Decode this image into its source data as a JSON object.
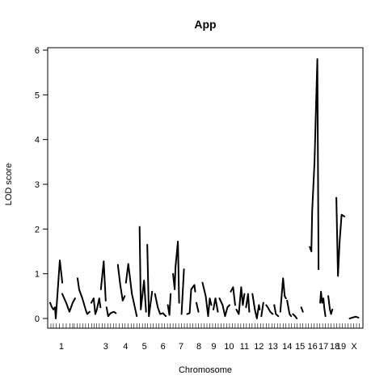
{
  "chart_data": {
    "type": "line",
    "title": "App",
    "xlabel": "Chromosome",
    "ylabel": "LOD score",
    "ylim": [
      0,
      6
    ],
    "yticks": [
      0,
      1,
      2,
      3,
      4,
      5,
      6
    ],
    "chromosomes": [
      {
        "label": "1",
        "start": 0,
        "end": 3,
        "points": [
          [
            0,
            0.35
          ],
          [
            0.4,
            0.26
          ],
          [
            0.8,
            0.2
          ],
          [
            1.2,
            0.25
          ],
          [
            1.4,
            0.0
          ],
          [
            2.4,
            1.3
          ],
          [
            2.9,
            0.9
          ],
          [
            3,
            0.8
          ]
        ]
      },
      {
        "label": "",
        "start": 3,
        "end": 6.5,
        "points": [
          [
            3,
            0.55
          ],
          [
            4.0,
            0.35
          ],
          [
            4.8,
            0.15
          ],
          [
            5.6,
            0.35
          ],
          [
            6.2,
            0.45
          ]
        ]
      },
      {
        "label": "",
        "start": 6.5,
        "end": 10,
        "points": [
          [
            6.8,
            0.9
          ],
          [
            7.2,
            0.65
          ],
          [
            8.0,
            0.45
          ],
          [
            8.8,
            0.2
          ],
          [
            9.2,
            0.1
          ],
          [
            9.8,
            0.15
          ]
        ]
      },
      {
        "label": "",
        "start": 10,
        "end": 12.5,
        "points": [
          [
            10.2,
            0.35
          ],
          [
            10.8,
            0.45
          ],
          [
            11.2,
            0.1
          ],
          [
            11.6,
            0.2
          ],
          [
            12.2,
            0.45
          ],
          [
            12.5,
            0.25
          ]
        ]
      },
      {
        "label": "",
        "start": 12.5,
        "end": 14,
        "points": [
          [
            12.6,
            0.65
          ],
          [
            13.3,
            1.28
          ],
          [
            13.8,
            0.4
          ]
        ]
      },
      {
        "label": "3",
        "start": 14,
        "end": 16.5,
        "points": [
          [
            14,
            0.25
          ],
          [
            14.4,
            0.05
          ],
          [
            15.0,
            0.12
          ],
          [
            15.8,
            0.15
          ],
          [
            16.3,
            0.12
          ]
        ]
      },
      {
        "label": "",
        "start": 16.5,
        "end": 18.5,
        "points": [
          [
            16.8,
            1.2
          ],
          [
            17.4,
            0.75
          ],
          [
            18.0,
            0.4
          ],
          [
            18.5,
            0.5
          ]
        ]
      },
      {
        "label": "4",
        "start": 18.5,
        "end": 22,
        "points": [
          [
            18.8,
            0.8
          ],
          [
            19.4,
            1.22
          ],
          [
            20.3,
            0.55
          ],
          [
            20.9,
            0.3
          ],
          [
            21.5,
            0.05
          ]
        ]
      },
      {
        "label": "",
        "start": 22,
        "end": 24,
        "points": [
          [
            22.2,
            2.05
          ],
          [
            22.5,
            0.2
          ],
          [
            23.3,
            0.85
          ],
          [
            23.8,
            0.15
          ]
        ]
      },
      {
        "label": "5",
        "start": 24,
        "end": 26,
        "points": [
          [
            24.1,
            1.65
          ],
          [
            24.5,
            0.05
          ],
          [
            25.3,
            0.6
          ]
        ]
      },
      {
        "label": "",
        "start": 26,
        "end": 29,
        "points": [
          [
            26.0,
            0.55
          ],
          [
            26.7,
            0.25
          ],
          [
            27.3,
            0.1
          ],
          [
            28.0,
            0.12
          ],
          [
            28.7,
            0.05
          ]
        ]
      },
      {
        "label": "6",
        "start": 29,
        "end": 30,
        "points": [
          [
            29.2,
            0.3
          ],
          [
            29.6,
            0.08
          ],
          [
            29.9,
            0.55
          ]
        ]
      },
      {
        "label": "",
        "start": 30,
        "end": 32,
        "points": [
          [
            30.5,
            1.0
          ],
          [
            30.9,
            0.65
          ],
          [
            31.1,
            1.15
          ],
          [
            31.7,
            1.72
          ],
          [
            32.0,
            0.35
          ]
        ]
      },
      {
        "label": "7",
        "start": 32,
        "end": 33.5,
        "points": [
          [
            32.6,
            0.1
          ],
          [
            33.2,
            1.1
          ]
        ]
      },
      {
        "label": "",
        "start": 33.5,
        "end": 36,
        "points": [
          [
            34.0,
            0.1
          ],
          [
            34.6,
            0.12
          ],
          [
            35.0,
            0.65
          ],
          [
            35.8,
            0.75
          ],
          [
            36.0,
            0.6
          ]
        ]
      },
      {
        "label": "8",
        "start": 36,
        "end": 37.5,
        "points": [
          [
            36.3,
            0.35
          ],
          [
            36.8,
            0.15
          ]
        ]
      },
      {
        "label": "",
        "start": 37.5,
        "end": 40,
        "points": [
          [
            37.8,
            0.8
          ],
          [
            38.6,
            0.5
          ],
          [
            39.2,
            0.05
          ],
          [
            39.6,
            0.45
          ],
          [
            40.0,
            0.3
          ]
        ]
      },
      {
        "label": "9",
        "start": 40,
        "end": 42,
        "points": [
          [
            40.5,
            0.2
          ],
          [
            41.0,
            0.45
          ],
          [
            41.6,
            0.15
          ]
        ]
      },
      {
        "label": "",
        "start": 42,
        "end": 44.5,
        "points": [
          [
            42.0,
            0.45
          ],
          [
            42.8,
            0.3
          ],
          [
            43.4,
            0.05
          ],
          [
            44.0,
            0.25
          ],
          [
            44.5,
            0.3
          ]
        ]
      },
      {
        "label": "10",
        "start": 44.5,
        "end": 46,
        "points": [
          [
            44.8,
            0.6
          ],
          [
            45.4,
            0.7
          ],
          [
            45.9,
            0.3
          ]
        ]
      },
      {
        "label": "",
        "start": 46,
        "end": 48.5,
        "points": [
          [
            46.2,
            0.2
          ],
          [
            46.8,
            0.1
          ],
          [
            47.4,
            0.7
          ],
          [
            47.8,
            0.3
          ],
          [
            48.2,
            0.55
          ]
        ]
      },
      {
        "label": "11",
        "start": 48.5,
        "end": 50,
        "points": [
          [
            48.6,
            0.25
          ],
          [
            49.1,
            0.55
          ],
          [
            49.4,
            0.15
          ]
        ]
      },
      {
        "label": "",
        "start": 50,
        "end": 52,
        "points": [
          [
            50.2,
            0.55
          ],
          [
            50.8,
            0.2
          ],
          [
            51.3,
            0.0
          ],
          [
            51.8,
            0.3
          ],
          [
            52.0,
            0.2
          ]
        ]
      },
      {
        "label": "12",
        "start": 52,
        "end": 53.5,
        "points": [
          [
            52.4,
            0.05
          ],
          [
            52.9,
            0.35
          ]
        ]
      },
      {
        "label": "",
        "start": 53.5,
        "end": 55.5,
        "points": [
          [
            53.6,
            0.3
          ],
          [
            54.0,
            0.25
          ],
          [
            54.6,
            0.15
          ],
          [
            55.2,
            0.1
          ]
        ]
      },
      {
        "label": "13",
        "start": 55.5,
        "end": 57,
        "points": [
          [
            55.6,
            0.3
          ],
          [
            56.0,
            0.1
          ],
          [
            56.6,
            0.05
          ]
        ]
      },
      {
        "label": "",
        "start": 57,
        "end": 58.5,
        "points": [
          [
            57.1,
            0.15
          ],
          [
            57.8,
            0.9
          ],
          [
            58.2,
            0.5
          ],
          [
            58.5,
            0.45
          ]
        ]
      },
      {
        "label": "14",
        "start": 58.5,
        "end": 60,
        "points": [
          [
            58.8,
            0.4
          ],
          [
            59.4,
            0.1
          ],
          [
            59.8,
            0.05
          ]
        ]
      },
      {
        "label": "15",
        "start": 60,
        "end": 62,
        "points": [
          [
            60.2,
            0.1
          ],
          [
            60.8,
            0.05
          ],
          [
            61.2,
            0.0
          ]
        ]
      },
      {
        "label": "",
        "start": 62,
        "end": 64,
        "points": [
          [
            62.3,
            0.25
          ],
          [
            62.7,
            0.15
          ]
        ]
      },
      {
        "label": "16",
        "start": 64,
        "end": 67,
        "points": [
          [
            64.4,
            1.6
          ],
          [
            64.8,
            1.5
          ],
          [
            65.0,
            2.4
          ],
          [
            65.6,
            3.5
          ],
          [
            65.9,
            4.5
          ],
          [
            66.3,
            5.8
          ],
          [
            66.6,
            1.1
          ]
        ]
      },
      {
        "label": "17",
        "start": 67,
        "end": 69,
        "points": [
          [
            67.0,
            0.35
          ],
          [
            67.2,
            0.6
          ],
          [
            67.5,
            0.35
          ],
          [
            67.8,
            0.45
          ],
          [
            68.0,
            0.25
          ],
          [
            68.3,
            0.05
          ]
        ]
      },
      {
        "label": "18",
        "start": 69,
        "end": 70.5,
        "points": [
          [
            69.0,
            0.5
          ],
          [
            69.4,
            0.2
          ],
          [
            69.7,
            0.1
          ],
          [
            70.0,
            0.2
          ]
        ]
      },
      {
        "label": "19",
        "start": 70.5,
        "end": 74,
        "points": [
          [
            71.0,
            2.7
          ],
          [
            71.4,
            0.95
          ],
          [
            71.8,
            1.7
          ],
          [
            72.3,
            2.32
          ],
          [
            73.0,
            2.28
          ]
        ]
      },
      {
        "label": "X",
        "start": 74,
        "end": 77,
        "points": [
          [
            74.3,
            0.0
          ],
          [
            75.0,
            0.02
          ],
          [
            75.8,
            0.04
          ],
          [
            76.5,
            0.02
          ]
        ]
      }
    ],
    "xlim": [
      0,
      77
    ],
    "markers": [
      0.2,
      0.8,
      1.5,
      2.3,
      3.2,
      4.0,
      4.9,
      5.6,
      6.0,
      6.7,
      7.4,
      8.1,
      8.8,
      9.5,
      10.3,
      10.9,
      11.5,
      12.2,
      12.9,
      13.6,
      14.3,
      15.0,
      15.7,
      16.4,
      17.1,
      17.9,
      18.6,
      19.3,
      20.1,
      20.8,
      21.5,
      22.2,
      22.9,
      23.6,
      24.2,
      24.9,
      25.6,
      26.3,
      27.0,
      27.7,
      28.4,
      29.1,
      29.8,
      30.5,
      31.2,
      31.9,
      32.6,
      33.3,
      34.0,
      34.7,
      35.4,
      36.1,
      36.8,
      37.5,
      38.2,
      38.9,
      39.6,
      40.3,
      41.0,
      41.7,
      42.4,
      43.1,
      43.8,
      44.5,
      45.2,
      45.9,
      46.6,
      47.3,
      48.0,
      48.7,
      49.4,
      50.1,
      50.8,
      51.5,
      52.2,
      52.9,
      53.6,
      54.3,
      55.0,
      55.7,
      56.4,
      57.1,
      57.8,
      58.5,
      59.2,
      59.9,
      60.6,
      61.3,
      62.0,
      62.7,
      63.4,
      64.1,
      64.8,
      65.5,
      66.2,
      66.9,
      67.6,
      68.3,
      69.0,
      69.7,
      70.4,
      71.1,
      71.8,
      72.5,
      73.2,
      73.9,
      74.6,
      75.3,
      76.0,
      76.7
    ]
  }
}
